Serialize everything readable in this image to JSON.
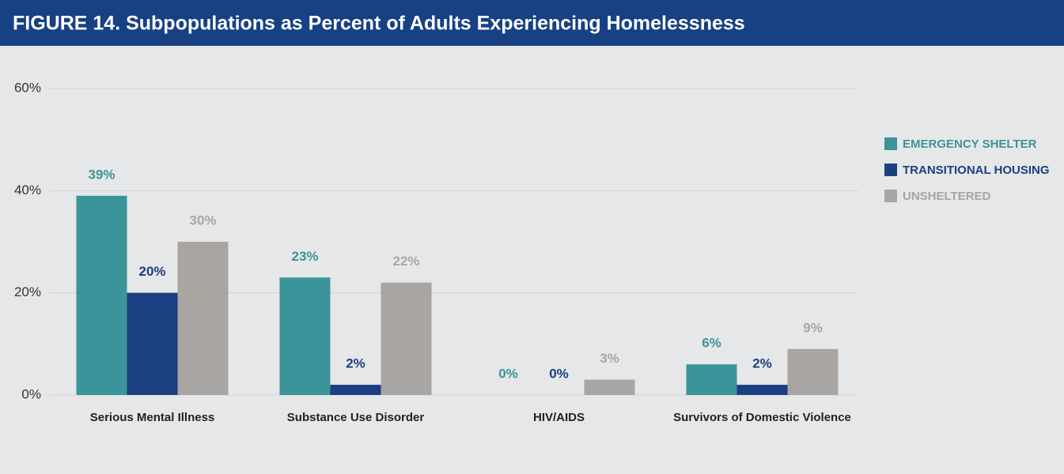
{
  "chart_data": {
    "type": "bar",
    "title": "FIGURE 14. Subpopulations as Percent of Adults Experiencing Homelessness",
    "categories": [
      "Serious Mental Illness",
      "Substance Use Disorder",
      "HIV/AIDS",
      "Survivors of Domestic Violence"
    ],
    "series": [
      {
        "name": "EMERGENCY SHELTER",
        "color": "#3a9499",
        "values": [
          39,
          23,
          0,
          6
        ],
        "value_labels": [
          "39%",
          "23%",
          "0%",
          "6%"
        ]
      },
      {
        "name": "TRANSITIONAL HOUSING",
        "color": "#1b3f80",
        "values": [
          20,
          2,
          0,
          2
        ],
        "value_labels": [
          "20%",
          "2%",
          "0%",
          "2%"
        ]
      },
      {
        "name": "UNSHELTERED",
        "color": "#a9a5a2",
        "values": [
          30,
          22,
          3,
          9
        ],
        "value_labels": [
          "30%",
          "22%",
          "3%",
          "9%"
        ]
      }
    ],
    "ylim": [
      0,
      60
    ],
    "yticks": [
      {
        "value": 0,
        "label": "0%"
      },
      {
        "value": 20,
        "label": "20%"
      },
      {
        "value": 40,
        "label": "40%"
      },
      {
        "value": 60,
        "label": "60%"
      }
    ],
    "grid": true,
    "legend": "right"
  }
}
